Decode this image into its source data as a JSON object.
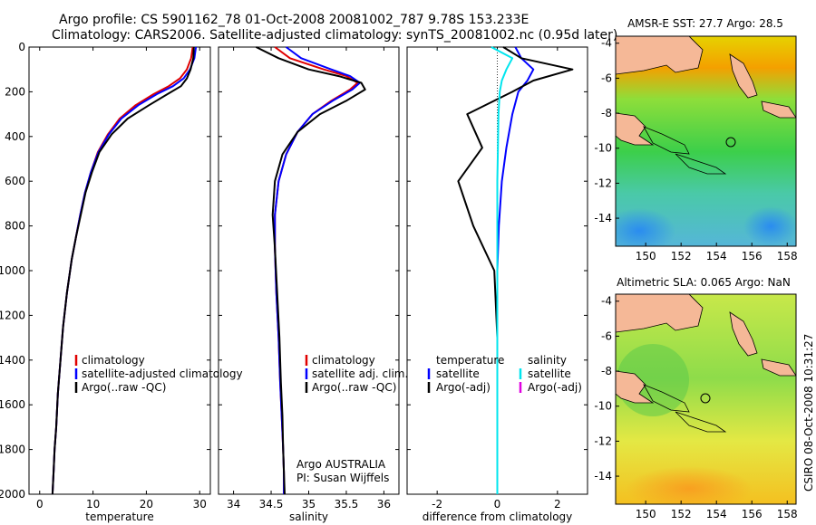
{
  "header": {
    "title_line1": "Argo profile: CS 5901162_78 01-Oct-2008 20081002_787 9.78S 153.233E",
    "title_line2": "Climatology: CARS2006. Satellite-adjusted climatology: synTS_20081002.nc (0.95d later)"
  },
  "credit": "CSIRO 08-Oct-2008 10:31:27",
  "colors": {
    "climatology": "#e00000",
    "satellite": "#0000ff",
    "argo": "#000000",
    "salinity_satellite": "#00e5ee",
    "salinity_argo": "#e000e0",
    "land": "#f5b897"
  },
  "chart_data": [
    {
      "type": "line",
      "id": "temperature",
      "xlabel": "temperature",
      "ylabel": "",
      "xlim": [
        -2,
        32
      ],
      "ylim": [
        2000,
        0
      ],
      "xticks": [
        "0",
        "10",
        "20",
        "30"
      ],
      "yticks": [
        "0",
        "200",
        "400",
        "600",
        "800",
        "1000",
        "1200",
        "1400",
        "1600",
        "1800",
        "2000"
      ],
      "legend": [
        "climatology",
        "satellite-adjusted climatology",
        "Argo(..raw -QC)"
      ],
      "legend_position": "lower-right",
      "series": [
        {
          "name": "climatology",
          "color": "#e00000",
          "x": [
            28.7,
            28.4,
            27.6,
            26.3,
            24.2,
            21.4,
            18.0,
            15.0,
            12.8,
            10.9,
            9.6,
            8.5,
            7.6,
            6.8,
            6.0,
            5.1,
            4.4,
            3.9,
            3.4,
            3.1,
            2.8,
            2.6,
            2.4
          ],
          "y": [
            0,
            50,
            100,
            140,
            175,
            210,
            260,
            320,
            390,
            470,
            560,
            650,
            750,
            850,
            950,
            1100,
            1250,
            1400,
            1550,
            1700,
            1800,
            1900,
            2000
          ]
        },
        {
          "name": "satellite-adjusted climatology",
          "color": "#0000ff",
          "x": [
            29.3,
            29.0,
            28.2,
            27.0,
            25.0,
            22.0,
            18.5,
            15.3,
            13.0,
            11.0,
            9.6,
            8.5,
            7.6,
            6.8,
            6.0,
            5.1,
            4.4,
            3.9,
            3.4,
            3.1,
            2.8,
            2.6,
            2.4
          ],
          "y": [
            0,
            50,
            100,
            140,
            175,
            210,
            260,
            320,
            390,
            470,
            560,
            650,
            750,
            850,
            950,
            1100,
            1250,
            1400,
            1550,
            1700,
            1800,
            1900,
            2000
          ]
        },
        {
          "name": "Argo(..raw -QC)",
          "color": "#000000",
          "x": [
            28.9,
            28.8,
            28.3,
            27.6,
            26.5,
            24.0,
            20.5,
            16.5,
            13.5,
            11.2,
            9.8,
            8.6,
            7.7,
            6.8,
            6.0,
            5.1,
            4.4,
            3.9,
            3.4,
            3.1,
            2.8,
            2.6,
            2.4
          ],
          "y": [
            0,
            50,
            100,
            140,
            175,
            210,
            260,
            320,
            390,
            470,
            560,
            650,
            750,
            850,
            950,
            1100,
            1250,
            1400,
            1550,
            1700,
            1800,
            1900,
            2000
          ]
        }
      ]
    },
    {
      "type": "line",
      "id": "salinity",
      "xlabel": "salinity",
      "ylabel": "",
      "xlim": [
        33.8,
        36.2
      ],
      "ylim": [
        2000,
        0
      ],
      "xticks": [
        "34",
        "34.5",
        "35",
        "35.5",
        "36"
      ],
      "legend": [
        "climatology",
        "satellite adj. clim.",
        "Argo(..raw -QC)"
      ],
      "legend_position": "lower-right",
      "annotation": [
        "Argo AUSTRALIA",
        "PI: Susan Wijffels"
      ],
      "series": [
        {
          "name": "climatology",
          "color": "#e00000",
          "x": [
            34.55,
            34.75,
            35.2,
            35.5,
            35.65,
            35.55,
            35.3,
            35.05,
            34.85,
            34.7,
            34.6,
            34.55,
            34.55,
            34.57,
            34.6,
            34.62,
            34.64,
            34.66,
            34.67,
            34.67
          ],
          "y": [
            0,
            50,
            100,
            130,
            160,
            190,
            240,
            300,
            380,
            480,
            600,
            750,
            900,
            1100,
            1300,
            1500,
            1650,
            1800,
            1900,
            2000
          ]
        },
        {
          "name": "satellite adj. clim.",
          "color": "#0000ff",
          "x": [
            34.7,
            34.9,
            35.3,
            35.55,
            35.68,
            35.58,
            35.32,
            35.05,
            34.85,
            34.7,
            34.6,
            34.55,
            34.55,
            34.57,
            34.6,
            34.62,
            34.64,
            34.66,
            34.67,
            34.67
          ],
          "y": [
            0,
            50,
            100,
            130,
            160,
            190,
            240,
            300,
            380,
            480,
            600,
            750,
            900,
            1100,
            1300,
            1500,
            1650,
            1800,
            1900,
            2000
          ]
        },
        {
          "name": "Argo(..raw -QC)",
          "color": "#000000",
          "x": [
            34.3,
            34.6,
            35.0,
            35.4,
            35.7,
            35.75,
            35.5,
            35.15,
            34.85,
            34.65,
            34.55,
            34.52,
            34.55,
            34.58,
            34.61,
            34.63,
            34.65,
            34.66,
            34.67,
            34.68
          ],
          "y": [
            0,
            50,
            100,
            130,
            160,
            190,
            240,
            300,
            380,
            480,
            600,
            750,
            900,
            1100,
            1300,
            1500,
            1650,
            1800,
            1900,
            2000
          ]
        }
      ]
    },
    {
      "type": "line",
      "id": "difference",
      "xlabel": "difference from climatology",
      "ylabel": "",
      "xlim": [
        -3,
        3
      ],
      "ylim": [
        2000,
        0
      ],
      "xticks": [
        "-2",
        "0",
        "2"
      ],
      "legend_groups": [
        {
          "title": "temperature",
          "items": [
            "satellite",
            "Argo(-adj)"
          ]
        },
        {
          "title": "salinity",
          "items": [
            "satellite",
            "Argo(-adj)"
          ]
        }
      ],
      "legend_position": "lower-middle",
      "series": [
        {
          "name": "temperature satellite",
          "color": "#0000ff",
          "x": [
            0.6,
            0.8,
            1.2,
            1.0,
            0.7,
            0.5,
            0.3,
            0.15,
            0.05,
            0.0,
            0.0,
            0.0,
            0.0
          ],
          "y": [
            0,
            50,
            100,
            150,
            200,
            300,
            450,
            600,
            800,
            1000,
            1300,
            1600,
            2000
          ]
        },
        {
          "name": "temperature Argo(-adj)",
          "color": "#000000",
          "x": [
            0.2,
            0.8,
            2.5,
            1.2,
            0.5,
            -1.0,
            -0.5,
            -1.3,
            -0.8,
            -0.1,
            0.0,
            0.0,
            0.0
          ],
          "y": [
            0,
            50,
            100,
            150,
            200,
            300,
            450,
            600,
            800,
            1000,
            1300,
            1600,
            2000
          ]
        },
        {
          "name": "salinity satellite",
          "color": "#00e5ee",
          "x": [
            -0.2,
            0.5,
            0.3,
            0.15,
            0.08,
            0.04,
            0.02,
            0.0,
            0.0,
            0.0,
            0.0,
            0.0,
            0.0
          ],
          "y": [
            0,
            50,
            100,
            150,
            200,
            300,
            450,
            600,
            800,
            1000,
            1300,
            1600,
            2000
          ]
        }
      ]
    }
  ],
  "maps": [
    {
      "title": "AMSR-E SST: 27.7 Argo: 28.5",
      "xticks": [
        "150",
        "152",
        "154",
        "156",
        "158"
      ],
      "yticks": [
        "-4",
        "-6",
        "-8",
        "-10",
        "-12",
        "-14"
      ],
      "marker_lon": 153.233,
      "marker_lat": -9.78
    },
    {
      "title": "Altimetric SLA: 0.065 Argo: NaN",
      "xticks": [
        "150",
        "152",
        "154",
        "156",
        "158"
      ],
      "yticks": [
        "-4",
        "-6",
        "-8",
        "-10",
        "-12",
        "-14"
      ],
      "marker_lon": 153.233,
      "marker_lat": -9.78
    }
  ]
}
